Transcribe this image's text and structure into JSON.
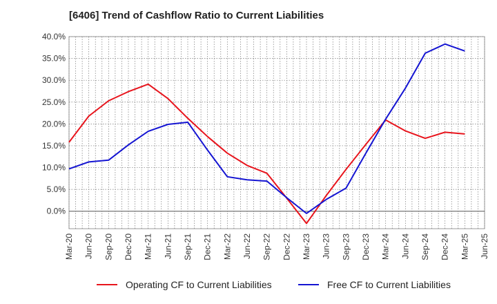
{
  "chart_data": {
    "type": "line",
    "title": "[6406]  Trend of Cashflow Ratio to Current Liabilities",
    "xlabel": "",
    "ylabel": "",
    "x": [
      "Mar-20",
      "Jun-20",
      "Sep-20",
      "Dec-20",
      "Mar-21",
      "Jun-21",
      "Sep-21",
      "Dec-21",
      "Mar-22",
      "Jun-22",
      "Sep-22",
      "Dec-22",
      "Mar-23",
      "Jun-23",
      "Sep-23",
      "Dec-23",
      "Mar-24",
      "Jun-24",
      "Sep-24",
      "Dec-24",
      "Mar-25",
      "Jun-25"
    ],
    "ylim": [
      -4.0,
      40.0
    ],
    "yticks": [
      0.0,
      5.0,
      10.0,
      15.0,
      20.0,
      25.0,
      30.0,
      35.0,
      40.0
    ],
    "ytick_labels": [
      "0.0%",
      "5.0%",
      "10.0%",
      "15.0%",
      "20.0%",
      "25.0%",
      "30.0%",
      "35.0%",
      "40.0%"
    ],
    "grid": true,
    "legend_position": "bottom",
    "series": [
      {
        "name": "Operating CF to Current Liabilities",
        "color": "#e8141c",
        "values": [
          15.8,
          21.8,
          25.3,
          27.4,
          29.1,
          25.8,
          21.3,
          17.1,
          13.3,
          10.5,
          8.7,
          3.0,
          -2.8,
          3.6,
          9.6,
          15.3,
          20.9,
          18.4,
          16.7,
          18.1,
          17.7,
          null
        ]
      },
      {
        "name": "Free CF to Current Liabilities",
        "color": "#1414d2",
        "values": [
          9.7,
          11.3,
          11.7,
          15.2,
          18.3,
          19.9,
          20.4,
          14.0,
          7.9,
          7.2,
          6.9,
          3.1,
          -0.5,
          2.7,
          5.3,
          13.3,
          21.1,
          28.2,
          36.2,
          38.3,
          36.7,
          null
        ]
      }
    ]
  }
}
